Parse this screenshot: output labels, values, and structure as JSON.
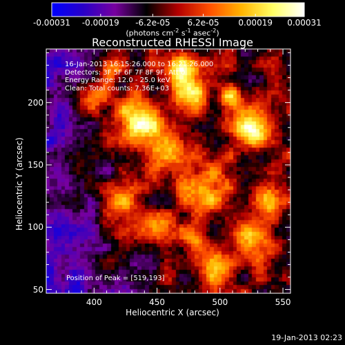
{
  "colorbar": {
    "tick_labels": [
      "-0.00031",
      "-0.00019",
      "-6.2e-05",
      "6.2e-05",
      "0.00019",
      "0.00031"
    ],
    "tick_values": [
      -0.00031,
      -0.00019,
      -6.2e-05,
      6.2e-05,
      0.00019,
      0.00031
    ],
    "range": [
      -0.00031,
      0.00031
    ],
    "units_main": "(photons cm",
    "units_exp1": "-2",
    "units_mid": " s",
    "units_exp2": "-1",
    "units_end": " asec",
    "units_exp3": "-2",
    "units_close": ")",
    "colors": [
      "#0000ff",
      "#2a00c8",
      "#7800a0",
      "#000000",
      "#b40000",
      "#ff5000",
      "#ffb400",
      "#ffff64",
      "#ffffff"
    ]
  },
  "plot": {
    "title": "Reconstructed RHESSI Image",
    "x_label": "Heliocentric X (arcsec)",
    "y_label": "Heliocentric Y (arcsec)",
    "x_range": [
      362,
      556
    ],
    "y_range": [
      47,
      243
    ],
    "x_ticks": [
      400,
      450,
      500,
      550
    ],
    "y_ticks": [
      50,
      100,
      150,
      200
    ],
    "x_tick_labels": [
      "400",
      "450",
      "500",
      "550"
    ],
    "y_tick_labels": [
      "50",
      "100",
      "150",
      "200"
    ]
  },
  "info": {
    "time_range": "16-Jan-2013 16:15:26.000 to 16:21:26.000",
    "detectors": "Detectors: 3F 5F 6F 7F 8F 9F, Att 0",
    "energy": "Energy Range: 12.0 - 25.0 keV",
    "clean": "Clean: Total counts: 7.36E+03",
    "peak": "Position of Peak = [519,193]"
  },
  "footer": {
    "date": "19-Jan-2013 02:23"
  }
}
